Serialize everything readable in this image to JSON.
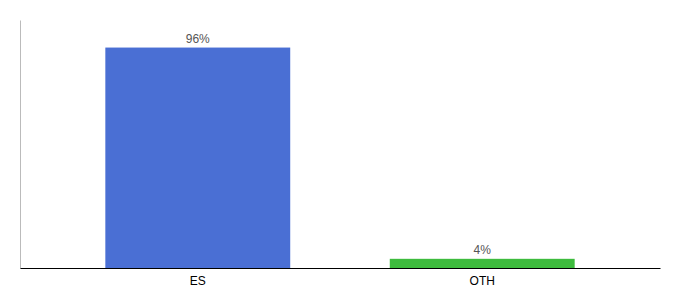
{
  "chart_data": {
    "type": "bar",
    "categories": [
      "ES",
      "OTH"
    ],
    "values": [
      96,
      4
    ],
    "value_labels": [
      "96%",
      "4%"
    ],
    "colors": [
      "#4a6fd4",
      "#3dbb3d"
    ],
    "ylim": [
      0,
      108
    ],
    "data_labels": true,
    "tick_labels": "x",
    "grid": false
  }
}
